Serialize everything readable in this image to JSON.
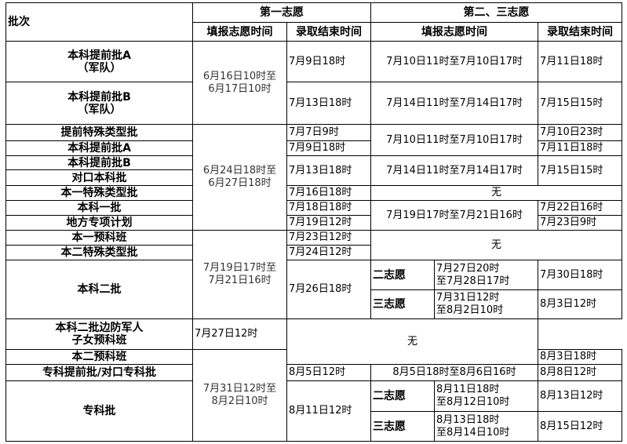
{
  "header": {
    "batch": "批次",
    "first_choice": "第一志愿",
    "second_third_choice": "第二、三志愿",
    "fill_time": "填报志愿时间",
    "admission_end": "录取结束时间",
    "fill_time_2": "填报志愿时间",
    "admission_end_2": "录取结束时间"
  },
  "rows": [
    {
      "batch": "本科提前批A",
      "batch2": "（军队）",
      "fill1": "6月16日10时至",
      "fill1b": "6月17日10时",
      "end1": "7月9日18时",
      "fill2": "7月10日11时至7月10日17时",
      "end2": "7月11日18时"
    },
    {
      "batch": "本科提前批B",
      "batch2": "（军队）",
      "end1": "7月13日18时",
      "fill2": "7月14日11时至7月14日17时",
      "end2": "7月15日15时"
    },
    {
      "batch": "提前特殊类型批",
      "fill1": "6月24日18时至",
      "fill1b": "6月27日18时",
      "end1": "7月7日9时",
      "fill2": "7月10日11时至7月10日17时",
      "end2": "7月10日23时"
    },
    {
      "batch": "本科提前批A",
      "end1": "7月9日18时",
      "end2": "7月11日18时"
    },
    {
      "batch": "本科提前批B",
      "end1": "7月13日18时",
      "fill2": "7月14日11时至7月14日17时",
      "end2": "7月15日15时"
    },
    {
      "batch": "对口本科批"
    },
    {
      "batch": "本一特殊类型批",
      "end1": "7月16日18时",
      "none": "无"
    },
    {
      "batch": "本科一批",
      "end1": "7月18日18时",
      "fill2": "7月19日17时至7月21日16时",
      "end2": "7月22日16时"
    },
    {
      "batch": "地方专项计划",
      "end1": "7月19日12时",
      "end2": "7月23日9时"
    },
    {
      "batch": "本一预科班",
      "fill1": "7月19日17时至",
      "fill1b": "7月21日16时",
      "end1": "7月23日12时",
      "none": "无"
    },
    {
      "batch": "本二特殊类型批",
      "end1": "7月24日12时"
    },
    {
      "batch": "本科二批",
      "end1": "7月26日18时",
      "sub": [
        {
          "label": "二志愿",
          "fill": "7月27日20时",
          "fillb": "至7月28日17时",
          "end": "7月30日18时"
        },
        {
          "label": "三志愿",
          "fill": "7月31日12时",
          "fillb": "至8月2日10时",
          "end": "8月3日12时"
        }
      ]
    },
    {
      "batch": "本科二批边防军人",
      "batch2": "子女预科班",
      "end1": "7月27日12时",
      "none": "无"
    },
    {
      "batch": "本二预科班",
      "fill1": "7月31日12时至",
      "fill1b": "8月2日10时",
      "end1": "8月3日18时"
    },
    {
      "batch": "专科提前批/对口专科批",
      "end1": "8月5日12时",
      "fill2": "8月5日18时至8月6日16时",
      "end2": "8月8日12时"
    },
    {
      "batch": "专科批",
      "end1": "8月11日12时",
      "sub": [
        {
          "label": "二志愿",
          "fill": "8月11日18时",
          "fillb": "至8月12日10时",
          "end": "8月13日12时"
        },
        {
          "label": "三志愿",
          "fill": "8月13日18时",
          "fillb": "至8月14日10时",
          "end": "8月15日12时"
        }
      ]
    }
  ]
}
